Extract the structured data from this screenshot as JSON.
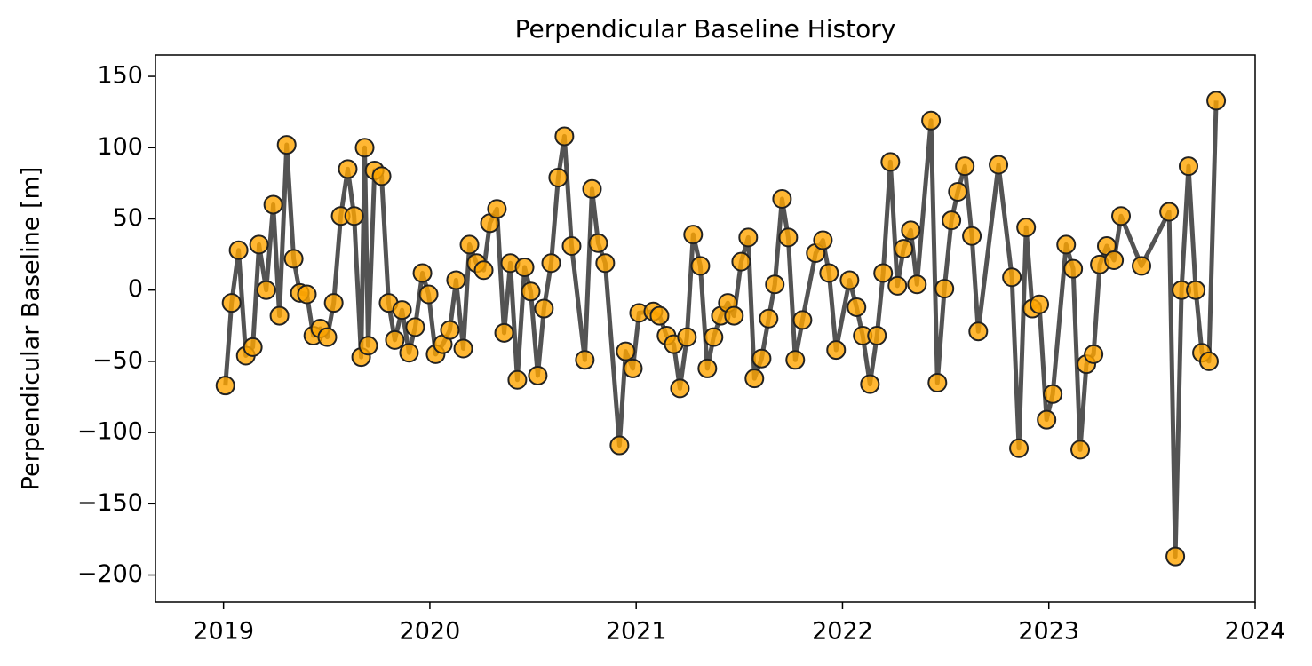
{
  "chart_data": {
    "type": "line",
    "title": "Perpendicular Baseline History",
    "ylabel": "Perpendicular Baseline [m]",
    "line_color": "#404040",
    "marker_color": "#ffa500",
    "x": [
      2019.009,
      2019.039,
      2019.073,
      2019.108,
      2019.142,
      2019.172,
      2019.207,
      2019.241,
      2019.271,
      2019.306,
      2019.34,
      2019.37,
      2019.404,
      2019.435,
      2019.469,
      2019.503,
      2019.534,
      2019.568,
      2019.602,
      2019.633,
      2019.667,
      2019.684,
      2019.701,
      2019.732,
      2019.766,
      2019.8,
      2019.83,
      2019.865,
      2019.899,
      2019.929,
      2019.964,
      2019.994,
      2020.028,
      2020.063,
      2020.097,
      2020.127,
      2020.162,
      2020.192,
      2020.226,
      2020.261,
      2020.291,
      2020.325,
      2020.36,
      2020.39,
      2020.424,
      2020.459,
      2020.489,
      2020.523,
      2020.553,
      2020.588,
      2020.622,
      2020.652,
      2020.687,
      2020.751,
      2020.786,
      2020.816,
      2020.85,
      2020.919,
      2020.949,
      2020.984,
      2021.014,
      2021.083,
      2021.113,
      2021.147,
      2021.182,
      2021.212,
      2021.246,
      2021.276,
      2021.311,
      2021.345,
      2021.375,
      2021.41,
      2021.444,
      2021.474,
      2021.509,
      2021.543,
      2021.573,
      2021.608,
      2021.642,
      2021.672,
      2021.707,
      2021.737,
      2021.771,
      2021.806,
      2021.87,
      2021.905,
      2021.935,
      2021.969,
      2022.034,
      2022.068,
      2022.098,
      2022.133,
      2022.167,
      2022.197,
      2022.232,
      2022.266,
      2022.296,
      2022.331,
      2022.361,
      2022.429,
      2022.46,
      2022.494,
      2022.528,
      2022.559,
      2022.593,
      2022.627,
      2022.658,
      2022.756,
      2022.821,
      2022.855,
      2022.89,
      2022.92,
      2022.954,
      2022.989,
      2023.019,
      2023.084,
      2023.118,
      2023.152,
      2023.182,
      2023.217,
      2023.247,
      2023.281,
      2023.316,
      2023.35,
      2023.449,
      2023.583,
      2023.613,
      2023.643,
      2023.677,
      2023.712,
      2023.742,
      2023.776,
      2023.811
    ],
    "values": [
      -67,
      -9,
      28,
      -46,
      -40,
      32,
      0,
      60,
      -18,
      102,
      22,
      -2,
      -3,
      -32,
      -27,
      -33,
      -9,
      52,
      85,
      52,
      -47,
      100,
      -39,
      84,
      80,
      -9,
      -35,
      -14,
      -44,
      -26,
      12,
      -3,
      -45,
      -38,
      -28,
      7,
      -41,
      32,
      19,
      14,
      47,
      57,
      -30,
      19,
      -63,
      16,
      -1,
      -60,
      -13,
      19,
      79,
      108,
      31,
      -49,
      71,
      33,
      19,
      -109,
      -43,
      -55,
      -16,
      -15,
      -18,
      -32,
      -38,
      -69,
      -33,
      39,
      17,
      -55,
      -33,
      -18,
      -9,
      -18,
      20,
      37,
      -62,
      -48,
      -20,
      4,
      64,
      37,
      -49,
      -21,
      26,
      35,
      12,
      -42,
      7,
      -12,
      -32,
      -66,
      -32,
      12,
      90,
      3,
      29,
      42,
      4,
      119,
      -65,
      1,
      49,
      69,
      87,
      38,
      -29,
      88,
      9,
      -111,
      44,
      -13,
      -10,
      -91,
      -73,
      32,
      15,
      -112,
      -52,
      -45,
      18,
      31,
      21,
      52,
      17,
      55,
      -187,
      0,
      87,
      0,
      -44,
      -50,
      133
    ],
    "xlim": [
      2018.67,
      2024
    ],
    "xticks": [
      2019,
      2020,
      2021,
      2022,
      2023,
      2024
    ],
    "ylim": [
      -219,
      165
    ],
    "yticks": [
      {
        "value": -200,
        "label": "−200"
      },
      {
        "value": -150,
        "label": "−150"
      },
      {
        "value": -100,
        "label": "−100"
      },
      {
        "value": -50,
        "label": "−50"
      },
      0,
      50,
      100,
      150
    ]
  }
}
